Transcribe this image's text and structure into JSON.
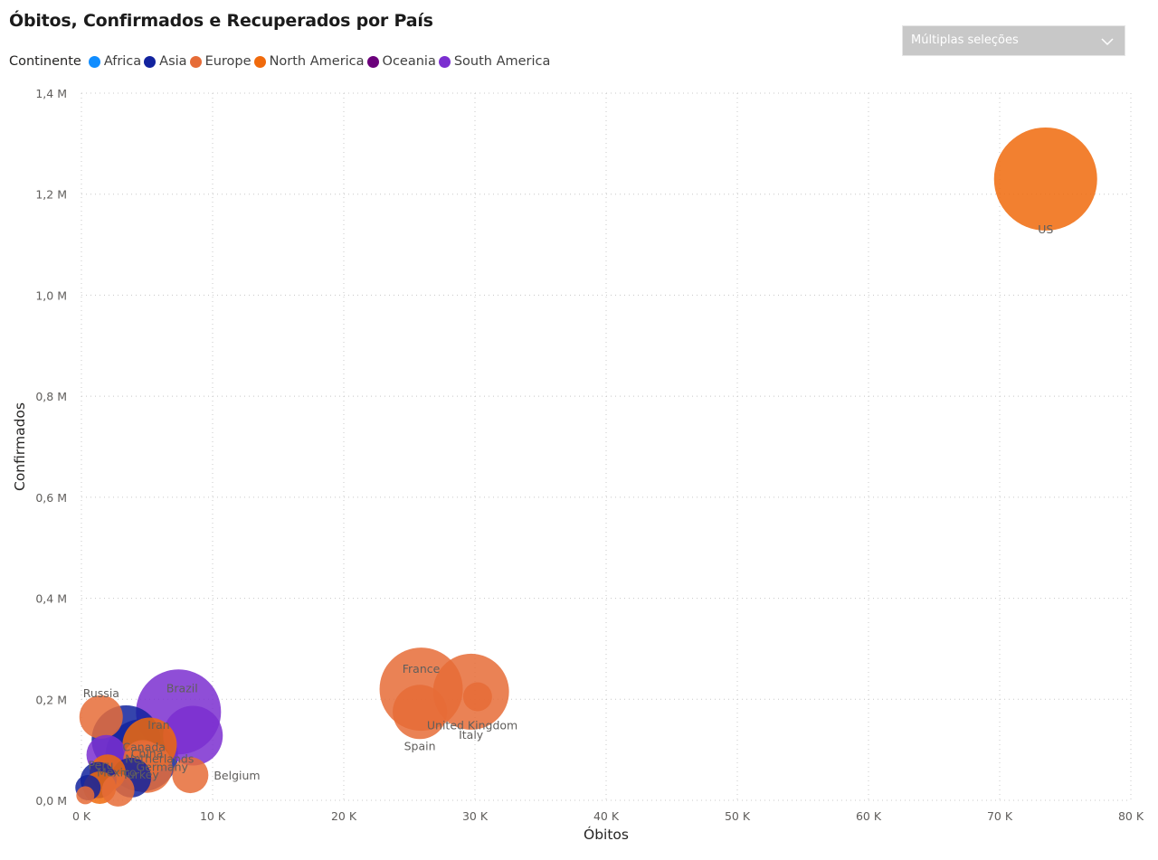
{
  "visual": {
    "title": "Óbitos, Confirmados e Recuperados por País"
  },
  "slicer": {
    "label": "Múltiplas seleções"
  },
  "legend": {
    "title": "Continente",
    "items": [
      {
        "label": "Africa",
        "color": "#118DFF"
      },
      {
        "label": "Asia",
        "color": "#12239E"
      },
      {
        "label": "Europe",
        "color": "#E66C37"
      },
      {
        "label": "North America",
        "color": "#F06A0C"
      },
      {
        "label": "Oceania",
        "color": "#6B007B"
      },
      {
        "label": "South America",
        "color": "#7B2FD0"
      }
    ]
  },
  "chart_data": {
    "type": "scatter",
    "title": "Óbitos, Confirmados e Recuperados por País",
    "xlabel": "Óbitos",
    "ylabel": "Confirmados",
    "size_field": "Recuperados",
    "xlim": [
      0,
      80000
    ],
    "ylim": [
      0,
      1400000
    ],
    "x_ticks": [
      0,
      10000,
      20000,
      30000,
      40000,
      50000,
      60000,
      70000,
      80000
    ],
    "x_tick_labels": [
      "0 K",
      "10 K",
      "20 K",
      "30 K",
      "40 K",
      "50 K",
      "60 K",
      "70 K",
      "80 K"
    ],
    "y_ticks": [
      0,
      200000,
      400000,
      600000,
      800000,
      1000000,
      1200000,
      1400000
    ],
    "y_tick_labels": [
      "0,0 M",
      "0,2 M",
      "0,4 M",
      "0,6 M",
      "0,8 M",
      "1,0 M",
      "1,2 M",
      "1,4 M"
    ],
    "grid": true,
    "legend_position": "top-left",
    "points": [
      {
        "label": "US",
        "continent": "North America",
        "x": 73500,
        "y": 1230000,
        "r": 57
      },
      {
        "label": "France",
        "continent": "Europe",
        "x": 25900,
        "y": 220000,
        "r": 46
      },
      {
        "label": "Italy",
        "continent": "Europe",
        "x": 29700,
        "y": 215000,
        "r": 42
      },
      {
        "label": "Spain",
        "continent": "Europe",
        "x": 25800,
        "y": 175000,
        "r": 30
      },
      {
        "label": "United Kingdom",
        "continent": "Europe",
        "x": 30200,
        "y": 205000,
        "r": 16
      },
      {
        "label": "Brazil",
        "continent": "South America",
        "x": 7400,
        "y": 175000,
        "r": 47
      },
      {
        "label": "Russia",
        "continent": "Europe",
        "x": 1500,
        "y": 165000,
        "r": 24
      },
      {
        "label": "Iran",
        "continent": "Asia",
        "x": 3400,
        "y": 120000,
        "r": 38
      },
      {
        "label": "Canada",
        "continent": "North America",
        "x": 5200,
        "y": 110000,
        "r": 30
      },
      {
        "label": "Peru",
        "continent": "South America",
        "x": 1900,
        "y": 90000,
        "r": 22
      },
      {
        "label": "China",
        "continent": "Asia",
        "x": 4600,
        "y": 89000,
        "r": 40
      },
      {
        "label": "Netherlands",
        "continent": "Europe",
        "x": 4700,
        "y": 80000,
        "r": 22
      },
      {
        "label": "Mexico",
        "continent": "North America",
        "x": 2000,
        "y": 55000,
        "r": 20
      },
      {
        "label": "Germany",
        "continent": "Europe",
        "x": 5000,
        "y": 65000,
        "r": 28
      },
      {
        "label": "Turkey",
        "continent": "Asia",
        "x": 3800,
        "y": 45000,
        "r": 22
      },
      {
        "label": "Belgium",
        "continent": "Europe",
        "x": 8300,
        "y": 50000,
        "r": 20
      },
      {
        "label": "",
        "continent": "South America",
        "x": 8500,
        "y": 128000,
        "r": 33
      },
      {
        "label": "",
        "continent": "Asia",
        "x": 1300,
        "y": 40000,
        "r": 20
      },
      {
        "label": "",
        "continent": "North America",
        "x": 1400,
        "y": 25000,
        "r": 18
      },
      {
        "label": "",
        "continent": "Europe",
        "x": 2800,
        "y": 20000,
        "r": 18
      },
      {
        "label": "",
        "continent": "Asia",
        "x": 500,
        "y": 25000,
        "r": 14
      },
      {
        "label": "",
        "continent": "Europe",
        "x": 300,
        "y": 10000,
        "r": 10
      }
    ]
  }
}
